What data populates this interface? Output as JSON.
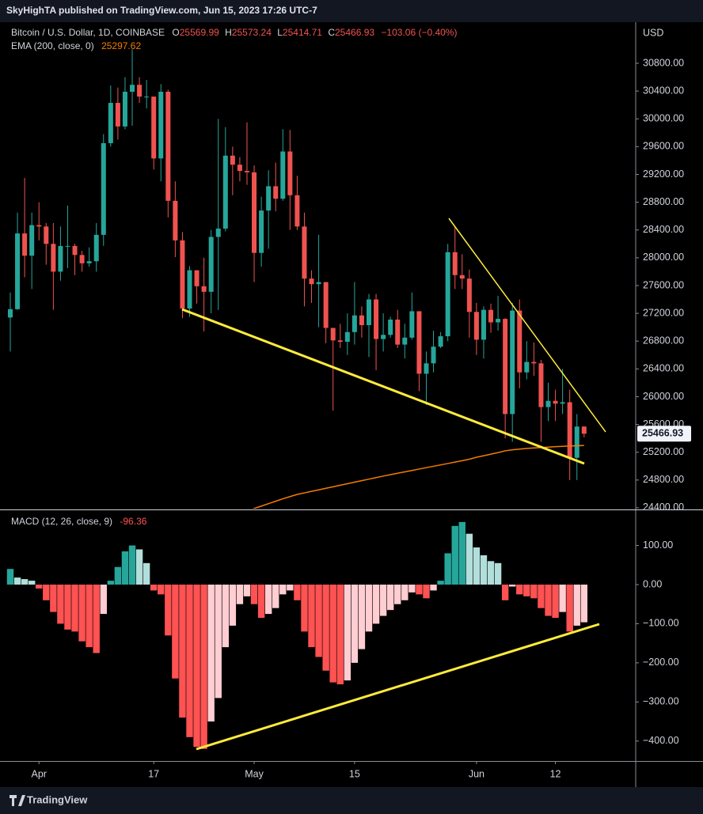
{
  "header": {
    "published": "SkyHighTA published on TradingView.com, Jun 15, 2023 17:26 UTC-7"
  },
  "brand": "TradingView",
  "chart_data": [
    {
      "type": "candlestick",
      "title": "Bitcoin / U.S. Dollar, 1D, COINBASE",
      "axis_label": "USD",
      "ohlc_labels": [
        "O",
        "H",
        "L",
        "C"
      ],
      "change_label": "−103.06 (−0.40%)",
      "up_color": "#26a69a",
      "down_color": "#ef5350",
      "x": [
        "2023-03-28",
        "2023-03-29",
        "2023-03-30",
        "2023-03-31",
        "2023-04-01",
        "2023-04-02",
        "2023-04-03",
        "2023-04-04",
        "2023-04-05",
        "2023-04-06",
        "2023-04-07",
        "2023-04-08",
        "2023-04-09",
        "2023-04-10",
        "2023-04-11",
        "2023-04-12",
        "2023-04-13",
        "2023-04-14",
        "2023-04-15",
        "2023-04-16",
        "2023-04-17",
        "2023-04-18",
        "2023-04-19",
        "2023-04-20",
        "2023-04-21",
        "2023-04-22",
        "2023-04-23",
        "2023-04-24",
        "2023-04-25",
        "2023-04-26",
        "2023-04-27",
        "2023-04-28",
        "2023-04-29",
        "2023-04-30",
        "2023-05-01",
        "2023-05-02",
        "2023-05-03",
        "2023-05-04",
        "2023-05-05",
        "2023-05-06",
        "2023-05-07",
        "2023-05-08",
        "2023-05-09",
        "2023-05-10",
        "2023-05-11",
        "2023-05-12",
        "2023-05-13",
        "2023-05-14",
        "2023-05-15",
        "2023-05-16",
        "2023-05-17",
        "2023-05-18",
        "2023-05-19",
        "2023-05-20",
        "2023-05-21",
        "2023-05-22",
        "2023-05-23",
        "2023-05-24",
        "2023-05-25",
        "2023-05-26",
        "2023-05-27",
        "2023-05-28",
        "2023-05-29",
        "2023-05-30",
        "2023-05-31",
        "2023-06-01",
        "2023-06-02",
        "2023-06-03",
        "2023-06-04",
        "2023-06-05",
        "2023-06-06",
        "2023-06-07",
        "2023-06-08",
        "2023-06-09",
        "2023-06-10",
        "2023-06-11",
        "2023-06-12",
        "2023-06-13",
        "2023-06-14",
        "2023-06-15",
        "2023-06-16"
      ],
      "open": [
        27140,
        27260,
        28350,
        28030,
        28470,
        28450,
        28200,
        27800,
        28170,
        28170,
        28040,
        27920,
        27950,
        28330,
        29650,
        30230,
        29890,
        30390,
        30490,
        30320,
        30320,
        29430,
        30390,
        28820,
        28250,
        27270,
        27820,
        27590,
        27510,
        28300,
        28420,
        29470,
        29340,
        29250,
        29230,
        28070,
        28680,
        29030,
        28850,
        29530,
        28900,
        28450,
        27700,
        27620,
        27650,
        26990,
        26810,
        26790,
        26930,
        27170,
        27030,
        27400,
        26830,
        26890,
        27110,
        26750,
        26850,
        27230,
        26330,
        26480,
        26720,
        26870,
        28080,
        27750,
        27700,
        27220,
        26820,
        27250,
        27070,
        27120,
        25750,
        27240,
        26350,
        26500,
        26480,
        25850,
        25940,
        25900,
        25920,
        25120,
        25569.99
      ],
      "high": [
        27500,
        28650,
        29150,
        28650,
        28800,
        28500,
        28500,
        28450,
        28750,
        28200,
        28100,
        28150,
        28500,
        29780,
        30480,
        30450,
        30600,
        31000,
        30600,
        30560,
        30320,
        30500,
        30420,
        29100,
        28370,
        27880,
        27820,
        28000,
        28400,
        30000,
        29880,
        29600,
        29450,
        29950,
        29330,
        28880,
        29260,
        29370,
        29850,
        29840,
        29180,
        28650,
        27820,
        28330,
        27650,
        26990,
        27050,
        27200,
        27650,
        27300,
        27480,
        27480,
        27200,
        27150,
        27250,
        27050,
        27500,
        27230,
        26650,
        26950,
        26930,
        28200,
        28450,
        28050,
        27830,
        27350,
        27300,
        27340,
        27450,
        27130,
        27350,
        27400,
        26800,
        26780,
        26530,
        26200,
        26100,
        26400,
        26100,
        25750,
        25573.24
      ],
      "low": [
        26650,
        27250,
        27720,
        27550,
        28250,
        27900,
        27250,
        27670,
        27850,
        27750,
        27800,
        27870,
        27800,
        28170,
        29600,
        29700,
        29850,
        29900,
        30230,
        30150,
        29270,
        29100,
        28580,
        28010,
        27130,
        27150,
        27340,
        26940,
        27200,
        27250,
        28380,
        28900,
        29100,
        29050,
        27650,
        27870,
        28130,
        28670,
        28820,
        28400,
        28400,
        27300,
        27350,
        27000,
        26770,
        25800,
        26700,
        26600,
        26750,
        26850,
        26570,
        26380,
        26650,
        26850,
        26700,
        26550,
        26820,
        26080,
        25880,
        26350,
        26700,
        26800,
        27550,
        27550,
        26850,
        26600,
        26550,
        26920,
        26950,
        25400,
        25350,
        26120,
        26250,
        26300,
        25350,
        25650,
        25650,
        25750,
        24800,
        24800,
        25414.71
      ],
      "close": [
        27260,
        28350,
        28030,
        28470,
        28450,
        28200,
        27800,
        28170,
        28170,
        28040,
        27920,
        27950,
        28330,
        29650,
        30230,
        29890,
        30390,
        30490,
        30320,
        30320,
        29430,
        30390,
        28820,
        28250,
        27270,
        27820,
        27590,
        27510,
        28300,
        28420,
        29470,
        29340,
        29250,
        29230,
        28070,
        28680,
        29030,
        28850,
        29530,
        28900,
        28450,
        27700,
        27620,
        27650,
        26990,
        26810,
        26790,
        26930,
        27170,
        27030,
        27400,
        26830,
        26890,
        27110,
        26750,
        26850,
        27230,
        26330,
        26480,
        26720,
        26870,
        28080,
        27750,
        27700,
        27220,
        26820,
        27250,
        27070,
        27120,
        25750,
        27240,
        26350,
        26500,
        26480,
        25850,
        25940,
        25900,
        25920,
        25120,
        25569.99,
        25466.93
      ],
      "overlays": [
        {
          "type": "line",
          "name": "EMA (200, close, 0)",
          "color": "#f57c00",
          "values": [
            null,
            null,
            null,
            null,
            null,
            null,
            null,
            null,
            null,
            null,
            null,
            null,
            null,
            null,
            null,
            null,
            null,
            null,
            null,
            null,
            null,
            null,
            null,
            null,
            null,
            null,
            null,
            null,
            null,
            null,
            null,
            null,
            null,
            24350,
            24390,
            24425,
            24460,
            24495,
            24530,
            24562,
            24593,
            24615,
            24637,
            24659,
            24681,
            24703,
            24725,
            24747,
            24769,
            24791,
            24813,
            24835,
            24857,
            24878,
            24898,
            24918,
            24938,
            24958,
            24978,
            24998,
            25018,
            25038,
            25058,
            25078,
            25100,
            25128,
            25150,
            25172,
            25195,
            25220,
            25235,
            25245,
            25255,
            25262,
            25268,
            25274,
            25280,
            25285,
            25290,
            25294,
            25297.62
          ]
        }
      ],
      "ylim": [
        24388,
        31392
      ],
      "yticks": [
        {
          "value": 24400,
          "label": "24400.00"
        },
        {
          "value": 24800,
          "label": "24800.00"
        },
        {
          "value": 25200,
          "label": "25200.00"
        },
        {
          "value": 25600,
          "label": "25600.00"
        },
        {
          "value": 26000,
          "label": "26000.00"
        },
        {
          "value": 26400,
          "label": "26400.00"
        },
        {
          "value": 26800,
          "label": "26800.00"
        },
        {
          "value": 27200,
          "label": "27200.00"
        },
        {
          "value": 27600,
          "label": "27600.00"
        },
        {
          "value": 28000,
          "label": "28000.00"
        },
        {
          "value": 28400,
          "label": "28400.00"
        },
        {
          "value": 28800,
          "label": "28800.00"
        },
        {
          "value": 29200,
          "label": "29200.00"
        },
        {
          "value": 29600,
          "label": "29600.00"
        },
        {
          "value": 30000,
          "label": "30000.00"
        },
        {
          "value": 30400,
          "label": "30400.00"
        },
        {
          "value": 30800,
          "label": "30800.00"
        }
      ],
      "xticks": [
        {
          "value": "2023-04-01",
          "label": "Apr"
        },
        {
          "value": "2023-04-17",
          "label": "17"
        },
        {
          "value": "2023-05-01",
          "label": "May"
        },
        {
          "value": "2023-05-15",
          "label": "15"
        },
        {
          "value": "2023-06-01",
          "label": "Jun"
        },
        {
          "value": "2023-06-12",
          "label": "12"
        }
      ]
    },
    {
      "type": "macd_histogram",
      "name": "MACD (12, 26, close, 9)",
      "colors": {
        "up_strong": "#26a69a",
        "up_weak": "#b2dfdb",
        "down_strong": "#ff5252",
        "down_weak": "#ffcdd2"
      },
      "values": [
        40,
        18,
        14,
        10,
        -10,
        -40,
        -70,
        -100,
        -115,
        -120,
        -145,
        -160,
        -175,
        -75,
        10,
        45,
        85,
        100,
        90,
        55,
        -15,
        -25,
        -130,
        -240,
        -340,
        -390,
        -415,
        -420,
        -350,
        -290,
        -160,
        -105,
        -50,
        -30,
        -50,
        -85,
        -75,
        -60,
        -25,
        -15,
        -40,
        -120,
        -160,
        -185,
        -220,
        -250,
        -255,
        -245,
        -200,
        -165,
        -120,
        -100,
        -80,
        -65,
        -50,
        -40,
        -20,
        -25,
        -35,
        -15,
        10,
        80,
        150,
        160,
        130,
        95,
        75,
        60,
        55,
        -40,
        -5,
        -25,
        -30,
        -35,
        -60,
        -80,
        -85,
        -70,
        -120,
        -105,
        -96.36
      ],
      "ylim": [
        -451,
        180
      ],
      "yticks": [
        {
          "value": 100,
          "label": "100.00"
        },
        {
          "value": 0,
          "label": "0.00"
        },
        {
          "value": -100,
          "label": "−100.00"
        },
        {
          "value": -200,
          "label": "−200.00"
        },
        {
          "value": -300,
          "label": "−300.00"
        },
        {
          "value": -400,
          "label": "−400.00"
        }
      ]
    }
  ]
}
